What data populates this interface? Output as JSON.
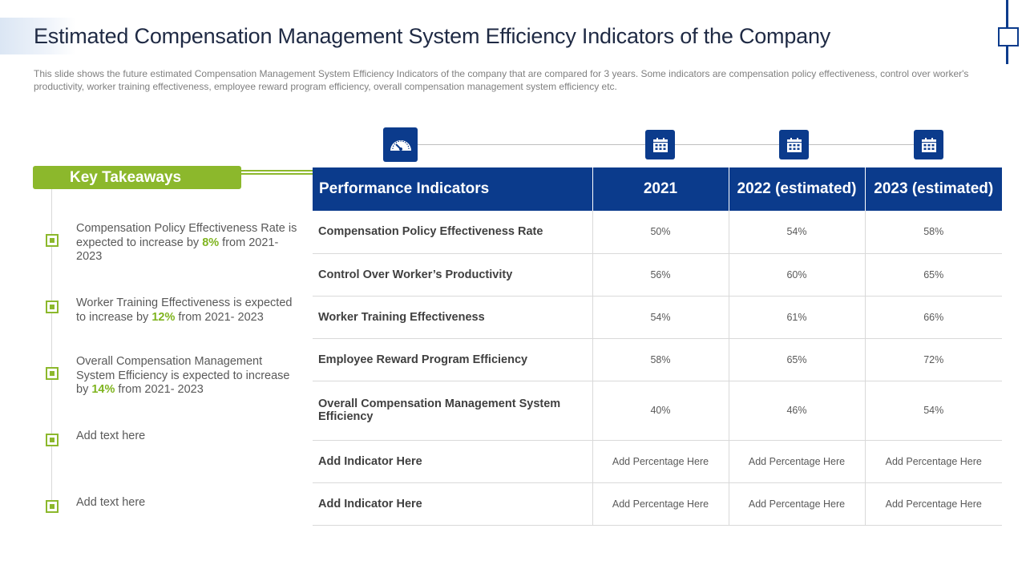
{
  "title": "Estimated Compensation Management System Efficiency Indicators of the Company",
  "description": "This slide shows the future estimated Compensation Management System Efficiency Indicators of the company that are compared for 3 years. Some indicators are compensation policy effectiveness, control over worker's productivity, worker training effectiveness, employee reward program efficiency, overall compensation management system efficiency etc.",
  "key_takeaways": {
    "heading": "Key Takeaways",
    "items": [
      {
        "pre": "Compensation Policy Effectiveness Rate is expected to increase by ",
        "highlight": "8%",
        "post": " from 2021- 2023"
      },
      {
        "pre": "Worker Training Effectiveness is expected to increase by ",
        "highlight": "12%",
        "post": " from 2021- 2023"
      },
      {
        "pre": "Overall Compensation Management System Efficiency is expected to increase by ",
        "highlight": "14%",
        "post": " from 2021- 2023"
      },
      {
        "text": "Add text here"
      },
      {
        "text": "Add text here"
      }
    ]
  },
  "icons": {
    "indicator": "speedometer-icon",
    "year": "calendar-icon"
  },
  "colors": {
    "primary": "#0b3b8c",
    "accent": "#8cb82c"
  },
  "table": {
    "headers": [
      "Performance Indicators",
      "2021",
      "2022 (estimated)",
      "2023 (estimated)"
    ],
    "rows": [
      [
        "Compensation Policy Effectiveness Rate",
        "50%",
        "54%",
        "58%"
      ],
      [
        "Control Over Worker’s Productivity",
        "56%",
        "60%",
        "65%"
      ],
      [
        "Worker Training Effectiveness",
        "54%",
        "61%",
        "66%"
      ],
      [
        "Employee Reward Program Efficiency",
        "58%",
        "65%",
        "72%"
      ],
      [
        "Overall Compensation Management System Efficiency",
        "40%",
        "46%",
        "54%"
      ],
      [
        "Add  Indicator Here",
        "Add Percentage Here",
        "Add Percentage Here",
        "Add Percentage Here"
      ],
      [
        "Add  Indicator Here",
        "Add Percentage Here",
        "Add Percentage Here",
        "Add Percentage Here"
      ]
    ]
  }
}
